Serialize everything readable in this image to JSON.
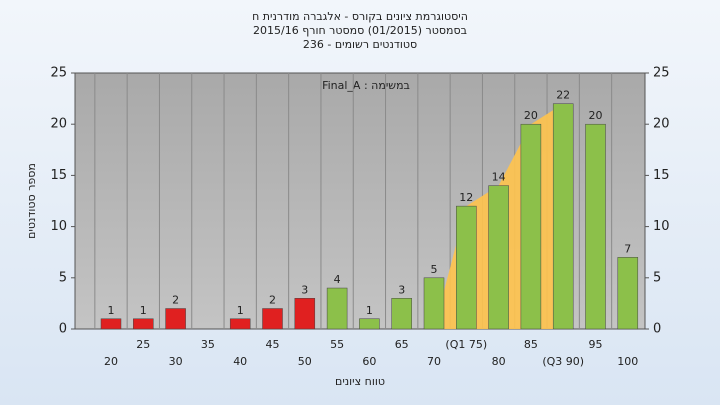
{
  "chart_data": {
    "type": "bar",
    "title": "היסטוגרמת ציונים בקורס - אלגברה מודרנית ח",
    "subtitle": "בסמסטר (01/2015) סמסטר חורף 2015/16",
    "subtitle2": "סטודנטים רשומים - 236",
    "annotation": "במשימה : Final_A",
    "x_label": "טווח ציונים",
    "y_label": "מספר סטודנטים",
    "categories": [
      "20",
      "25",
      "30",
      "35",
      "40",
      "45",
      "50",
      "55",
      "60",
      "65",
      "70",
      "(Q1 75)",
      "80",
      "85",
      "(Q3 90)",
      "95",
      "100"
    ],
    "values": [
      1,
      1,
      2,
      0,
      1,
      2,
      3,
      4,
      1,
      3,
      5,
      12,
      14,
      20,
      22,
      20,
      7
    ],
    "colors": [
      "#e02020",
      "#e02020",
      "#e02020",
      "#e02020",
      "#e02020",
      "#e02020",
      "#e02020",
      "#8cc04a",
      "#8cc04a",
      "#8cc04a",
      "#8cc04a",
      "#8cc04a",
      "#8cc04a",
      "#8cc04a",
      "#8cc04a",
      "#8cc04a",
      "#8cc04a"
    ],
    "ylim": [
      0,
      25
    ],
    "yticks": [
      0,
      5,
      10,
      15,
      20,
      25
    ],
    "y2lim": [
      0,
      25
    ],
    "y2ticks": [
      0,
      5,
      10,
      15,
      20,
      25
    ],
    "grid": true
  }
}
